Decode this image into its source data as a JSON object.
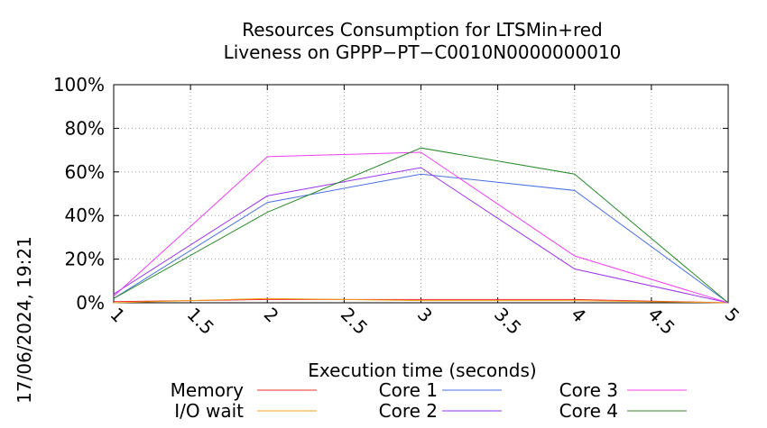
{
  "chart_data": {
    "type": "line",
    "title": "Resources Consumption for LTSMin+red",
    "subtitle": "Liveness on GPPP−PT−C0010N0000000010",
    "xlabel": "Execution time (seconds)",
    "ylabel": "",
    "timestamp": "17/06/2024, 19:21",
    "xlim": [
      1,
      5
    ],
    "ylim": [
      0,
      100
    ],
    "x_ticks": [
      1,
      1.5,
      2,
      2.5,
      3,
      3.5,
      4,
      4.5,
      5
    ],
    "x_tick_labels": [
      "1",
      "1.5",
      "2",
      "2.5",
      "3",
      "3.5",
      "4",
      "4.5",
      "5"
    ],
    "y_ticks": [
      0,
      20,
      40,
      60,
      80,
      100
    ],
    "y_tick_labels": [
      "0%",
      "20%",
      "40%",
      "60%",
      "80%",
      "100%"
    ],
    "grid": true,
    "legend_position": "bottom",
    "series": [
      {
        "name": "Memory",
        "color": "#e8302a",
        "x": [
          1,
          2,
          3,
          4,
          5
        ],
        "values": [
          0.5,
          1.5,
          1.5,
          1.5,
          0
        ]
      },
      {
        "name": "I/O wait",
        "color": "#f0a020",
        "x": [
          1,
          2,
          3,
          4,
          5
        ],
        "values": [
          0,
          2,
          1,
          1,
          0
        ]
      },
      {
        "name": "Core 1",
        "color": "#4a6fe0",
        "x": [
          1,
          2,
          3,
          4,
          5
        ],
        "values": [
          2,
          46,
          59,
          51.5,
          0
        ]
      },
      {
        "name": "Core 2",
        "color": "#9933ee",
        "x": [
          1,
          2,
          3,
          4,
          5
        ],
        "values": [
          4,
          49,
          62,
          15.5,
          0
        ]
      },
      {
        "name": "Core 3",
        "color": "#f040f0",
        "x": [
          1,
          2,
          3,
          4,
          5
        ],
        "values": [
          3,
          67,
          69,
          21.5,
          0
        ]
      },
      {
        "name": "Core 4",
        "color": "#2a8a2a",
        "x": [
          1,
          2,
          3,
          4,
          5
        ],
        "values": [
          2,
          41.5,
          71,
          59,
          0
        ]
      }
    ]
  }
}
